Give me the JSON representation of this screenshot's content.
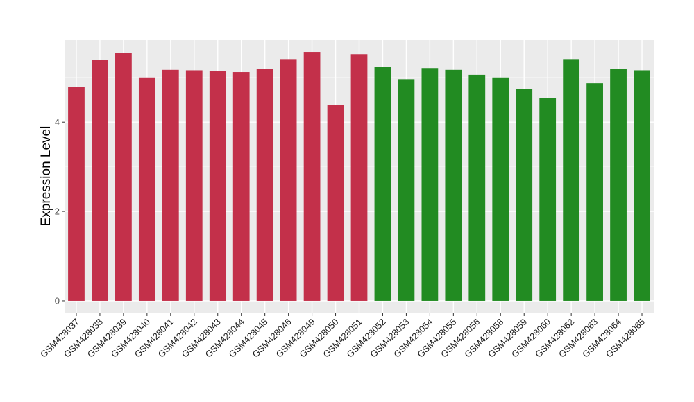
{
  "chart_data": {
    "type": "bar",
    "ylabel": "Expression Level",
    "ylim": [
      -0.28,
      5.85
    ],
    "yticks": [
      0,
      2,
      4
    ],
    "grid": true,
    "legend": "none",
    "categories": [
      "GSM428037",
      "GSM428038",
      "GSM428039",
      "GSM428040",
      "GSM428041",
      "GSM428042",
      "GSM428043",
      "GSM428044",
      "GSM428045",
      "GSM428046",
      "GSM428049",
      "GSM428050",
      "GSM428051",
      "GSM428052",
      "GSM428053",
      "GSM428054",
      "GSM428055",
      "GSM428056",
      "GSM428058",
      "GSM428059",
      "GSM428060",
      "GSM428062",
      "GSM428063",
      "GSM428064",
      "GSM428065"
    ],
    "values": [
      4.78,
      5.39,
      5.55,
      5.0,
      5.17,
      5.16,
      5.14,
      5.12,
      5.19,
      5.41,
      5.57,
      4.38,
      5.52,
      5.24,
      4.96,
      5.21,
      5.17,
      5.06,
      5.0,
      4.74,
      4.54,
      5.41,
      4.87,
      5.19,
      5.16
    ],
    "groups": [
      "red",
      "red",
      "red",
      "red",
      "red",
      "red",
      "red",
      "red",
      "red",
      "red",
      "red",
      "red",
      "red",
      "green",
      "green",
      "green",
      "green",
      "green",
      "green",
      "green",
      "green",
      "green",
      "green",
      "green",
      "green"
    ]
  },
  "colors": {
    "red": "#c3304a",
    "green": "#228b22",
    "panel": "#ebebeb",
    "grid_major": "#ffffff",
    "grid_minor": "#f5f5f5"
  }
}
